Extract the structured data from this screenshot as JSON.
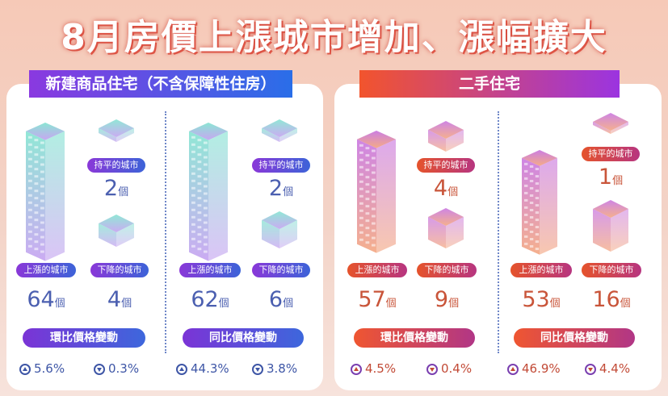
{
  "title": "8月房價上漲城市增加、漲幅擴大",
  "chart_data": [
    {
      "type": "table",
      "title": "新建商品住宅（不含保障性住房）",
      "groups": [
        {
          "label": "環比價格變動",
          "counts": [
            {
              "label": "持平的城市",
              "value": 2,
              "unit": "個"
            },
            {
              "label": "上漲的城市",
              "value": 64,
              "unit": "個"
            },
            {
              "label": "下降的城市",
              "value": 4,
              "unit": "個"
            }
          ],
          "change_up": "5.6%",
          "change_down": "0.3%"
        },
        {
          "label": "同比價格變動",
          "counts": [
            {
              "label": "持平的城市",
              "value": 2,
              "unit": "個"
            },
            {
              "label": "上漲的城市",
              "value": 62,
              "unit": "個"
            },
            {
              "label": "下降的城市",
              "value": 6,
              "unit": "個"
            }
          ],
          "change_up": "44.3%",
          "change_down": "3.8%"
        }
      ]
    },
    {
      "type": "table",
      "title": "二手住宅",
      "groups": [
        {
          "label": "環比價格變動",
          "counts": [
            {
              "label": "持平的城市",
              "value": 4,
              "unit": "個"
            },
            {
              "label": "上漲的城市",
              "value": 57,
              "unit": "個"
            },
            {
              "label": "下降的城市",
              "value": 9,
              "unit": "個"
            }
          ],
          "change_up": "4.5%",
          "change_down": "0.4%"
        },
        {
          "label": "同比價格變動",
          "counts": [
            {
              "label": "持平的城市",
              "value": 1,
              "unit": "個"
            },
            {
              "label": "上漲的城市",
              "value": 53,
              "unit": "個"
            },
            {
              "label": "下降的城市",
              "value": 16,
              "unit": "個"
            }
          ],
          "change_up": "46.9%",
          "change_down": "4.4%"
        }
      ]
    }
  ],
  "colors": {
    "blue_theme": "#3c63d8",
    "purple_theme": "#8a38d8",
    "red_theme": "#e5532b",
    "teal": "#6fe0d0"
  }
}
